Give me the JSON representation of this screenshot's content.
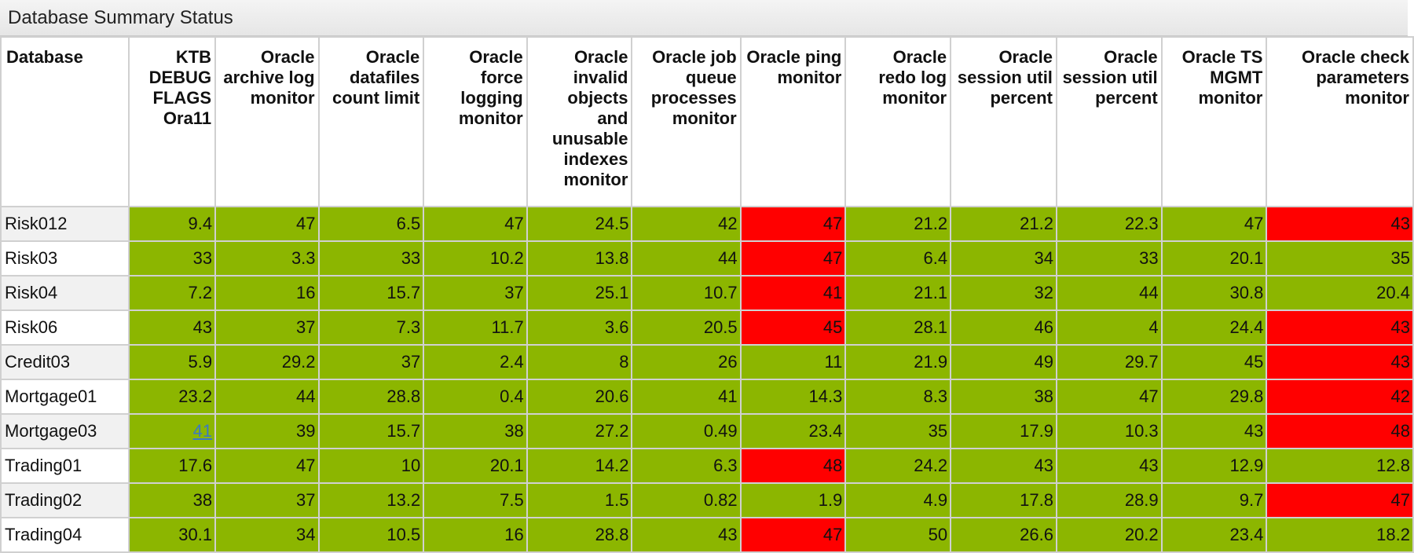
{
  "panel": {
    "title": "Database Summary Status"
  },
  "colors": {
    "ok": "#8cb600",
    "bad": "#ff0000",
    "link": "#3b79c4",
    "alt_row": "#f1f1f1"
  },
  "columns": [
    "Database",
    "KTB DEBUG FLAGS Ora11",
    "Oracle archive log monitor",
    "Oracle datafiles count limit",
    "Oracle force logging monitor",
    "Oracle invalid objects and unusable indexes monitor",
    "Oracle job queue processes monitor",
    "Oracle ping monitor",
    "Oracle redo log monitor",
    "Oracle session util percent",
    "Oracle session util percent",
    "Oracle TS MGMT monitor",
    "Oracle check parameters monitor"
  ],
  "rows": [
    {
      "name": "Risk012",
      "cells": [
        {
          "v": "9.4",
          "s": "ok"
        },
        {
          "v": "47",
          "s": "ok"
        },
        {
          "v": "6.5",
          "s": "ok"
        },
        {
          "v": "47",
          "s": "ok"
        },
        {
          "v": "24.5",
          "s": "ok"
        },
        {
          "v": "42",
          "s": "ok"
        },
        {
          "v": "47",
          "s": "bad"
        },
        {
          "v": "21.2",
          "s": "ok"
        },
        {
          "v": "21.2",
          "s": "ok"
        },
        {
          "v": "22.3",
          "s": "ok"
        },
        {
          "v": "47",
          "s": "ok"
        },
        {
          "v": "43",
          "s": "bad"
        }
      ]
    },
    {
      "name": "Risk03",
      "cells": [
        {
          "v": "33",
          "s": "ok"
        },
        {
          "v": "3.3",
          "s": "ok"
        },
        {
          "v": "33",
          "s": "ok"
        },
        {
          "v": "10.2",
          "s": "ok"
        },
        {
          "v": "13.8",
          "s": "ok"
        },
        {
          "v": "44",
          "s": "ok"
        },
        {
          "v": "47",
          "s": "bad"
        },
        {
          "v": "6.4",
          "s": "ok"
        },
        {
          "v": "34",
          "s": "ok"
        },
        {
          "v": "33",
          "s": "ok"
        },
        {
          "v": "20.1",
          "s": "ok"
        },
        {
          "v": "35",
          "s": "ok"
        }
      ]
    },
    {
      "name": "Risk04",
      "cells": [
        {
          "v": "7.2",
          "s": "ok"
        },
        {
          "v": "16",
          "s": "ok"
        },
        {
          "v": "15.7",
          "s": "ok"
        },
        {
          "v": "37",
          "s": "ok"
        },
        {
          "v": "25.1",
          "s": "ok"
        },
        {
          "v": "10.7",
          "s": "ok"
        },
        {
          "v": "41",
          "s": "bad"
        },
        {
          "v": "21.1",
          "s": "ok"
        },
        {
          "v": "32",
          "s": "ok"
        },
        {
          "v": "44",
          "s": "ok"
        },
        {
          "v": "30.8",
          "s": "ok"
        },
        {
          "v": "20.4",
          "s": "ok"
        }
      ]
    },
    {
      "name": "Risk06",
      "cells": [
        {
          "v": "43",
          "s": "ok"
        },
        {
          "v": "37",
          "s": "ok"
        },
        {
          "v": "7.3",
          "s": "ok"
        },
        {
          "v": "11.7",
          "s": "ok"
        },
        {
          "v": "3.6",
          "s": "ok"
        },
        {
          "v": "20.5",
          "s": "ok"
        },
        {
          "v": "45",
          "s": "bad"
        },
        {
          "v": "28.1",
          "s": "ok"
        },
        {
          "v": "46",
          "s": "ok"
        },
        {
          "v": "4",
          "s": "ok"
        },
        {
          "v": "24.4",
          "s": "ok"
        },
        {
          "v": "43",
          "s": "bad"
        }
      ]
    },
    {
      "name": "Credit03",
      "cells": [
        {
          "v": "5.9",
          "s": "ok"
        },
        {
          "v": "29.2",
          "s": "ok"
        },
        {
          "v": "37",
          "s": "ok"
        },
        {
          "v": "2.4",
          "s": "ok"
        },
        {
          "v": "8",
          "s": "ok"
        },
        {
          "v": "26",
          "s": "ok"
        },
        {
          "v": "11",
          "s": "ok"
        },
        {
          "v": "21.9",
          "s": "ok"
        },
        {
          "v": "49",
          "s": "ok"
        },
        {
          "v": "29.7",
          "s": "ok"
        },
        {
          "v": "45",
          "s": "ok"
        },
        {
          "v": "43",
          "s": "bad"
        }
      ]
    },
    {
      "name": "Mortgage01",
      "cells": [
        {
          "v": "23.2",
          "s": "ok"
        },
        {
          "v": "44",
          "s": "ok"
        },
        {
          "v": "28.8",
          "s": "ok"
        },
        {
          "v": "0.4",
          "s": "ok"
        },
        {
          "v": "20.6",
          "s": "ok"
        },
        {
          "v": "41",
          "s": "ok"
        },
        {
          "v": "14.3",
          "s": "ok"
        },
        {
          "v": "8.3",
          "s": "ok"
        },
        {
          "v": "38",
          "s": "ok"
        },
        {
          "v": "47",
          "s": "ok"
        },
        {
          "v": "29.8",
          "s": "ok"
        },
        {
          "v": "42",
          "s": "bad"
        }
      ]
    },
    {
      "name": "Mortgage03",
      "cells": [
        {
          "v": "41",
          "s": "ok",
          "link": true
        },
        {
          "v": "39",
          "s": "ok"
        },
        {
          "v": "15.7",
          "s": "ok"
        },
        {
          "v": "38",
          "s": "ok"
        },
        {
          "v": "27.2",
          "s": "ok"
        },
        {
          "v": "0.49",
          "s": "ok"
        },
        {
          "v": "23.4",
          "s": "ok"
        },
        {
          "v": "35",
          "s": "ok"
        },
        {
          "v": "17.9",
          "s": "ok"
        },
        {
          "v": "10.3",
          "s": "ok"
        },
        {
          "v": "43",
          "s": "ok"
        },
        {
          "v": "48",
          "s": "bad"
        }
      ]
    },
    {
      "name": "Trading01",
      "cells": [
        {
          "v": "17.6",
          "s": "ok"
        },
        {
          "v": "47",
          "s": "ok"
        },
        {
          "v": "10",
          "s": "ok"
        },
        {
          "v": "20.1",
          "s": "ok"
        },
        {
          "v": "14.2",
          "s": "ok"
        },
        {
          "v": "6.3",
          "s": "ok"
        },
        {
          "v": "48",
          "s": "bad"
        },
        {
          "v": "24.2",
          "s": "ok"
        },
        {
          "v": "43",
          "s": "ok"
        },
        {
          "v": "43",
          "s": "ok"
        },
        {
          "v": "12.9",
          "s": "ok"
        },
        {
          "v": "12.8",
          "s": "ok"
        }
      ]
    },
    {
      "name": "Trading02",
      "cells": [
        {
          "v": "38",
          "s": "ok"
        },
        {
          "v": "37",
          "s": "ok"
        },
        {
          "v": "13.2",
          "s": "ok"
        },
        {
          "v": "7.5",
          "s": "ok"
        },
        {
          "v": "1.5",
          "s": "ok"
        },
        {
          "v": "0.82",
          "s": "ok"
        },
        {
          "v": "1.9",
          "s": "ok"
        },
        {
          "v": "4.9",
          "s": "ok"
        },
        {
          "v": "17.8",
          "s": "ok"
        },
        {
          "v": "28.9",
          "s": "ok"
        },
        {
          "v": "9.7",
          "s": "ok"
        },
        {
          "v": "47",
          "s": "bad"
        }
      ]
    },
    {
      "name": "Trading04",
      "cells": [
        {
          "v": "30.1",
          "s": "ok"
        },
        {
          "v": "34",
          "s": "ok"
        },
        {
          "v": "10.5",
          "s": "ok"
        },
        {
          "v": "16",
          "s": "ok"
        },
        {
          "v": "28.8",
          "s": "ok"
        },
        {
          "v": "43",
          "s": "ok"
        },
        {
          "v": "47",
          "s": "bad"
        },
        {
          "v": "50",
          "s": "ok"
        },
        {
          "v": "26.6",
          "s": "ok"
        },
        {
          "v": "20.2",
          "s": "ok"
        },
        {
          "v": "23.4",
          "s": "ok"
        },
        {
          "v": "18.2",
          "s": "ok"
        }
      ]
    }
  ]
}
